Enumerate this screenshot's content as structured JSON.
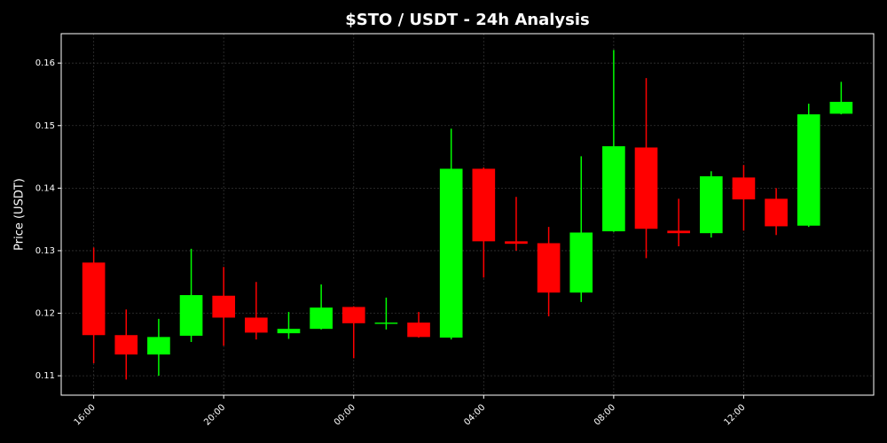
{
  "chart_data": {
    "type": "candlestick",
    "title": "$STO / USDT - 24h Analysis",
    "y_label": "Price (USDT)",
    "categories": [
      "16:00",
      null,
      null,
      null,
      "20:00",
      null,
      null,
      null,
      "00:00",
      null,
      null,
      null,
      "04:00",
      null,
      null,
      null,
      "08:00",
      null,
      null,
      null,
      "12:00",
      null,
      null,
      null
    ],
    "open": [
      0.1281,
      0.1165,
      0.1134,
      0.1164,
      0.1228,
      0.1193,
      0.1168,
      0.1175,
      0.121,
      0.1183,
      0.1185,
      0.1161,
      0.1431,
      0.1315,
      0.1312,
      0.1233,
      0.1331,
      0.1465,
      0.1332,
      0.1328,
      0.1417,
      0.1383,
      0.134,
      0.1519
    ],
    "high": [
      0.1305,
      0.1206,
      0.1191,
      0.1303,
      0.1274,
      0.125,
      0.1202,
      0.1246,
      0.1211,
      0.1225,
      0.1202,
      0.1495,
      0.1433,
      0.1386,
      0.1338,
      0.1451,
      0.1621,
      0.1576,
      0.1383,
      0.1427,
      0.1437,
      0.14,
      0.1535,
      0.157
    ],
    "low": [
      0.112,
      0.1094,
      0.11,
      0.1154,
      0.1148,
      0.1158,
      0.1159,
      0.1174,
      0.1128,
      0.1174,
      0.1161,
      0.1158,
      0.1257,
      0.13,
      0.1195,
      0.1218,
      0.133,
      0.1288,
      0.1307,
      0.1321,
      0.1332,
      0.1325,
      0.1338,
      0.1518
    ],
    "close": [
      0.1165,
      0.1134,
      0.1162,
      0.1229,
      0.1193,
      0.1169,
      0.1175,
      0.1209,
      0.1184,
      0.1185,
      0.1162,
      0.1431,
      0.1315,
      0.1311,
      0.1233,
      0.1329,
      0.1467,
      0.1335,
      0.1328,
      0.1419,
      0.1382,
      0.1339,
      0.1518,
      0.1538
    ],
    "up_color": "#00ff00",
    "down_color": "#ff0000",
    "ylim": [
      0.1069,
      0.1647
    ],
    "yticks": [
      0.11,
      0.12,
      0.13,
      0.14,
      0.15,
      0.16
    ],
    "grid": true
  }
}
